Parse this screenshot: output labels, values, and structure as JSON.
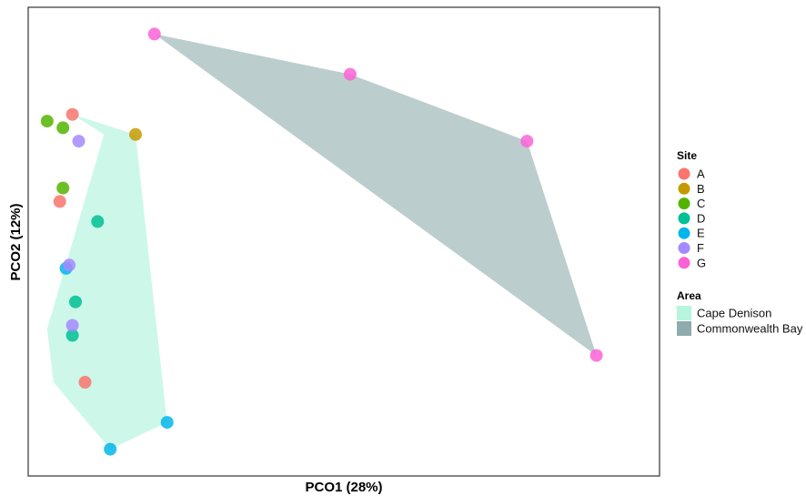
{
  "chart_data": {
    "type": "scatter",
    "title": "",
    "xlabel": "PCO1 (28%)",
    "ylabel": "PCO2 (12%)",
    "x_ticks": "none",
    "y_ticks": "none",
    "xlim": [
      -0.5,
      9.5
    ],
    "ylim": [
      -5.0,
      2.0
    ],
    "grid": false,
    "legend_position": "right",
    "site_legend": {
      "title": "Site",
      "entries": [
        {
          "label": "A",
          "color": "#F8766D"
        },
        {
          "label": "B",
          "color": "#C49A00"
        },
        {
          "label": "C",
          "color": "#53B400"
        },
        {
          "label": "D",
          "color": "#00C094"
        },
        {
          "label": "E",
          "color": "#00B6EB"
        },
        {
          "label": "F",
          "color": "#A58AFF"
        },
        {
          "label": "G",
          "color": "#FB61D7"
        }
      ]
    },
    "area_legend": {
      "title": "Area",
      "entries": [
        {
          "label": "Cape Denison",
          "color": "#b8f5df"
        },
        {
          "label": "Commonwealth Bay",
          "color": "#90abad"
        }
      ]
    },
    "hulls": [
      {
        "area": "Cape Denison",
        "points": [
          [
            0.2,
            0.4
          ],
          [
            0.7,
            0.1
          ],
          [
            -0.2,
            -2.8
          ],
          [
            -0.1,
            -3.6
          ],
          [
            0.8,
            -4.6
          ],
          [
            1.7,
            -4.2
          ],
          [
            1.2,
            0.1
          ]
        ]
      },
      {
        "area": "Commonwealth Bay",
        "points": [
          [
            1.5,
            1.6
          ],
          [
            4.6,
            1.0
          ],
          [
            7.4,
            0.0
          ],
          [
            8.5,
            -3.2
          ]
        ]
      }
    ],
    "points": [
      {
        "site": "A",
        "area": "Cape Denison",
        "x": 0.2,
        "y": 0.4
      },
      {
        "site": "A",
        "area": "Cape Denison",
        "x": 0.0,
        "y": -0.9
      },
      {
        "site": "A",
        "area": "Cape Denison",
        "x": 0.4,
        "y": -3.6
      },
      {
        "site": "B",
        "area": "Cape Denison",
        "x": 1.2,
        "y": 0.1
      },
      {
        "site": "C",
        "area": "Cape Denison",
        "x": -0.2,
        "y": 0.3
      },
      {
        "site": "C",
        "area": "Cape Denison",
        "x": 0.05,
        "y": 0.2
      },
      {
        "site": "C",
        "area": "Cape Denison",
        "x": 0.05,
        "y": -0.7
      },
      {
        "site": "D",
        "area": "Cape Denison",
        "x": 0.6,
        "y": -1.2
      },
      {
        "site": "D",
        "area": "Cape Denison",
        "x": 0.25,
        "y": -2.4
      },
      {
        "site": "D",
        "area": "Cape Denison",
        "x": 0.2,
        "y": -2.9
      },
      {
        "site": "E",
        "area": "Cape Denison",
        "x": 0.1,
        "y": -1.9
      },
      {
        "site": "E",
        "area": "Cape Denison",
        "x": 1.7,
        "y": -4.2
      },
      {
        "site": "E",
        "area": "Cape Denison",
        "x": 0.8,
        "y": -4.6
      },
      {
        "site": "F",
        "area": "Cape Denison",
        "x": 0.3,
        "y": 0.0
      },
      {
        "site": "F",
        "area": "Cape Denison",
        "x": 0.15,
        "y": -1.85
      },
      {
        "site": "F",
        "area": "Cape Denison",
        "x": 0.2,
        "y": -2.75
      },
      {
        "site": "G",
        "area": "Commonwealth Bay",
        "x": 1.5,
        "y": 1.6
      },
      {
        "site": "G",
        "area": "Commonwealth Bay",
        "x": 4.6,
        "y": 1.0
      },
      {
        "site": "G",
        "area": "Commonwealth Bay",
        "x": 7.4,
        "y": 0.0
      },
      {
        "site": "G",
        "area": "Commonwealth Bay",
        "x": 8.5,
        "y": -3.2
      }
    ]
  }
}
